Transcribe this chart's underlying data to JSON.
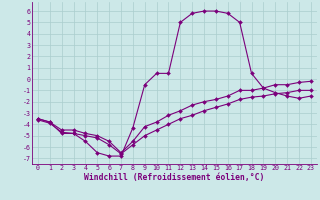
{
  "xlabel": "Windchill (Refroidissement éolien,°C)",
  "x": [
    0,
    1,
    2,
    3,
    4,
    5,
    6,
    7,
    8,
    9,
    10,
    11,
    12,
    13,
    14,
    15,
    16,
    17,
    18,
    19,
    20,
    21,
    22,
    23
  ],
  "line1": [
    -3.5,
    -3.8,
    -4.8,
    -4.8,
    -5.5,
    -6.5,
    -6.8,
    -6.8,
    -4.3,
    -0.5,
    0.5,
    0.5,
    5.0,
    5.8,
    6.0,
    6.0,
    5.8,
    5.0,
    0.5,
    -0.8,
    -1.2,
    -1.5,
    -1.7,
    -1.5
  ],
  "line2": [
    -3.5,
    -3.8,
    -4.5,
    -4.5,
    -4.8,
    -5.0,
    -5.5,
    -6.5,
    -5.5,
    -4.2,
    -3.8,
    -3.2,
    -2.8,
    -2.3,
    -2.0,
    -1.8,
    -1.5,
    -1.0,
    -1.0,
    -0.8,
    -0.5,
    -0.5,
    -0.3,
    -0.2
  ],
  "line3": [
    -3.6,
    -3.9,
    -4.7,
    -4.8,
    -5.0,
    -5.2,
    -5.8,
    -6.6,
    -5.8,
    -5.0,
    -4.5,
    -4.0,
    -3.5,
    -3.2,
    -2.8,
    -2.5,
    -2.2,
    -1.8,
    -1.6,
    -1.5,
    -1.3,
    -1.2,
    -1.0,
    -1.0
  ],
  "line_color": "#7b007b",
  "bg_color": "#cce8e8",
  "grid_color": "#aacece",
  "ylim": [
    -7.5,
    6.8
  ],
  "yticks": [
    -7,
    -6,
    -5,
    -4,
    -3,
    -2,
    -1,
    0,
    1,
    2,
    3,
    4,
    5,
    6
  ],
  "xlim": [
    -0.5,
    23.5
  ],
  "marker": "D",
  "markersize": 2.0,
  "linewidth": 0.8,
  "tick_fontsize": 4.8,
  "xlabel_fontsize": 5.8
}
